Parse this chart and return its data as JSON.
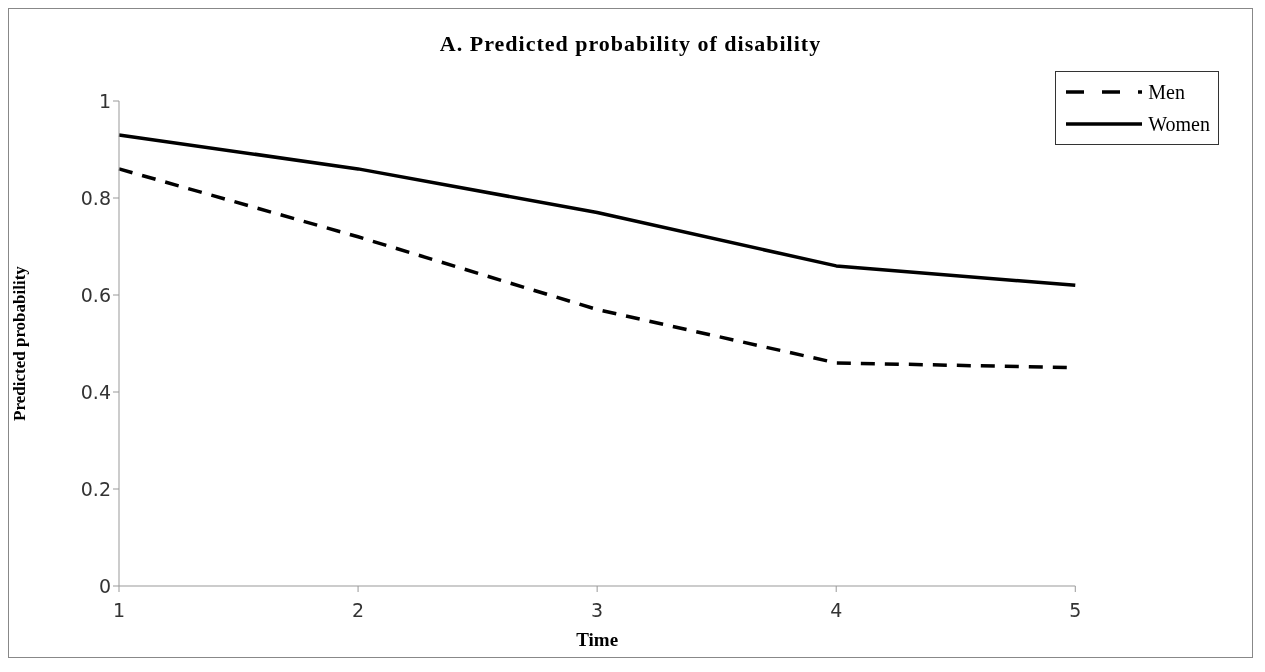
{
  "chart_data": {
    "type": "line",
    "title": "A. Predicted probability of disability",
    "xlabel": "Time",
    "ylabel": "Predicted probability",
    "categories": [
      "1",
      "2",
      "3",
      "4",
      "5"
    ],
    "series": [
      {
        "name": "Men",
        "color": "#000000",
        "line_style": "dashed",
        "values": [
          0.86,
          0.72,
          0.57,
          0.46,
          0.45
        ]
      },
      {
        "name": "Women",
        "color": "#000000",
        "line_style": "solid",
        "values": [
          0.93,
          0.86,
          0.77,
          0.66,
          0.62
        ]
      }
    ],
    "ylim": [
      0,
      1
    ],
    "yticks": [
      0,
      0.2,
      0.4,
      0.6,
      0.8,
      1
    ],
    "grid": false,
    "legend": "top right",
    "marker": "none"
  }
}
